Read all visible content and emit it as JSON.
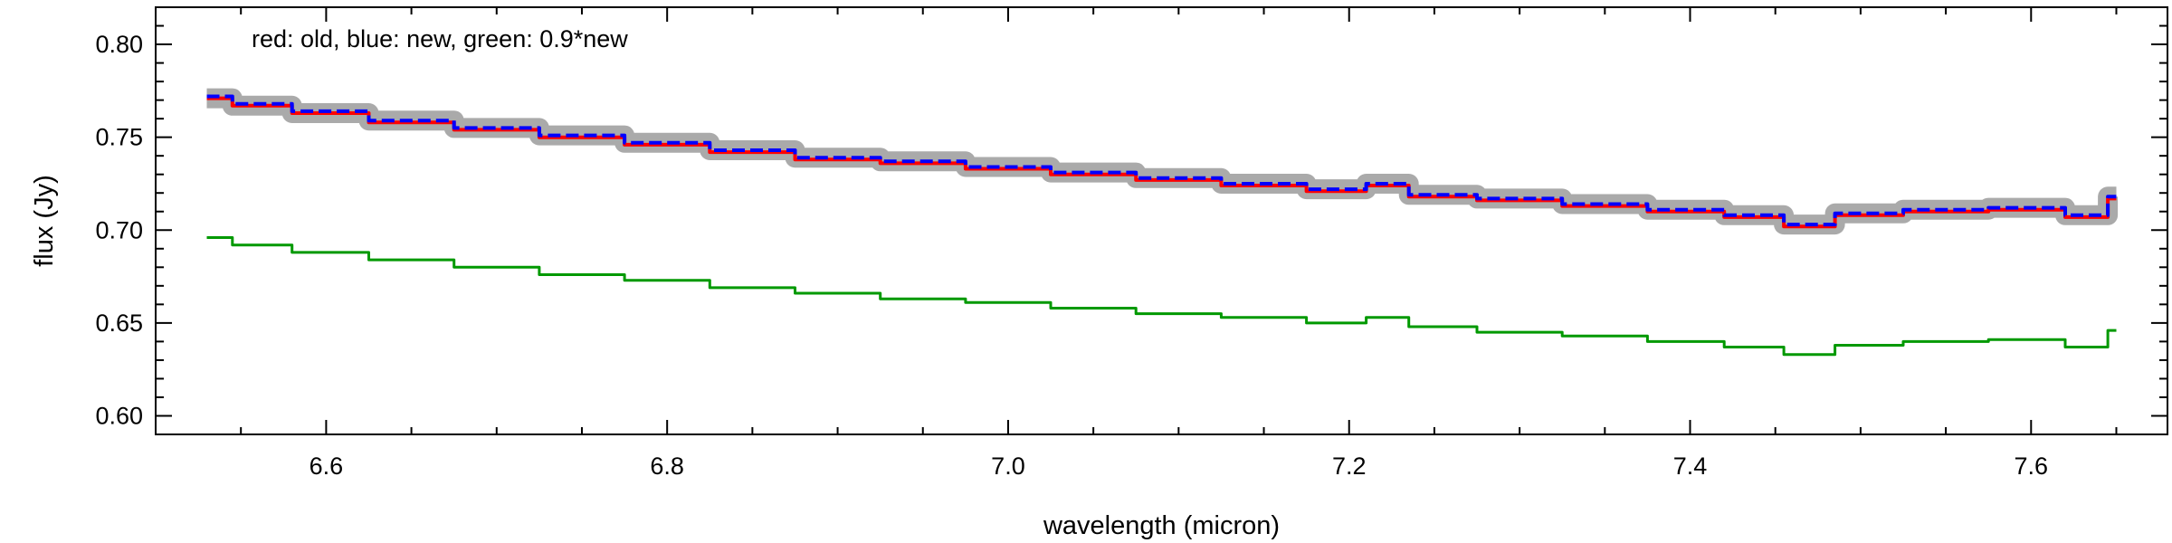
{
  "chart_data": {
    "type": "line",
    "title": "",
    "annotation": "red: old, blue: new, green: 0.9*new",
    "xlabel": "wavelength (micron)",
    "ylabel": "flux (Jy)",
    "xlim": [
      6.5,
      7.68
    ],
    "ylim": [
      0.59,
      0.82
    ],
    "xticks": [
      6.6,
      6.8,
      7.0,
      7.2,
      7.4,
      7.6
    ],
    "xtick_labels": [
      "6.6",
      "6.8",
      "7.0",
      "7.2",
      "7.4",
      "7.6"
    ],
    "yticks": [
      0.6,
      0.65,
      0.7,
      0.75,
      0.8
    ],
    "ytick_labels": [
      "0.60",
      "0.65",
      "0.70",
      "0.75",
      "0.80"
    ],
    "grid": false,
    "x": [
      6.53,
      6.56,
      6.6,
      6.65,
      6.7,
      6.75,
      6.8,
      6.85,
      6.9,
      6.95,
      7.0,
      7.05,
      7.1,
      7.15,
      7.2,
      7.22,
      7.25,
      7.3,
      7.35,
      7.4,
      7.44,
      7.47,
      7.5,
      7.55,
      7.6,
      7.64,
      7.65
    ],
    "series": [
      {
        "color": "#aaaaaa",
        "values": [
          0.771,
          0.767,
          0.763,
          0.759,
          0.755,
          0.751,
          0.747,
          0.743,
          0.739,
          0.737,
          0.734,
          0.731,
          0.728,
          0.725,
          0.722,
          0.725,
          0.719,
          0.717,
          0.714,
          0.711,
          0.708,
          0.703,
          0.709,
          0.711,
          0.712,
          0.708,
          0.718
        ]
      },
      {
        "color": "#ff0000",
        "values": [
          0.771,
          0.767,
          0.763,
          0.758,
          0.754,
          0.75,
          0.746,
          0.742,
          0.738,
          0.736,
          0.733,
          0.73,
          0.727,
          0.724,
          0.721,
          0.724,
          0.718,
          0.716,
          0.713,
          0.71,
          0.707,
          0.702,
          0.708,
          0.71,
          0.711,
          0.707,
          0.717
        ]
      },
      {
        "color": "#0000ff",
        "values": [
          0.772,
          0.768,
          0.764,
          0.759,
          0.755,
          0.751,
          0.747,
          0.743,
          0.739,
          0.737,
          0.734,
          0.731,
          0.728,
          0.725,
          0.722,
          0.725,
          0.719,
          0.717,
          0.714,
          0.711,
          0.708,
          0.703,
          0.709,
          0.711,
          0.712,
          0.708,
          0.718
        ]
      },
      {
        "color": "#009900",
        "values": [
          0.696,
          0.692,
          0.688,
          0.684,
          0.68,
          0.676,
          0.673,
          0.669,
          0.666,
          0.663,
          0.661,
          0.658,
          0.655,
          0.653,
          0.65,
          0.653,
          0.648,
          0.645,
          0.643,
          0.64,
          0.637,
          0.633,
          0.638,
          0.64,
          0.641,
          0.637,
          0.646
        ]
      }
    ]
  }
}
